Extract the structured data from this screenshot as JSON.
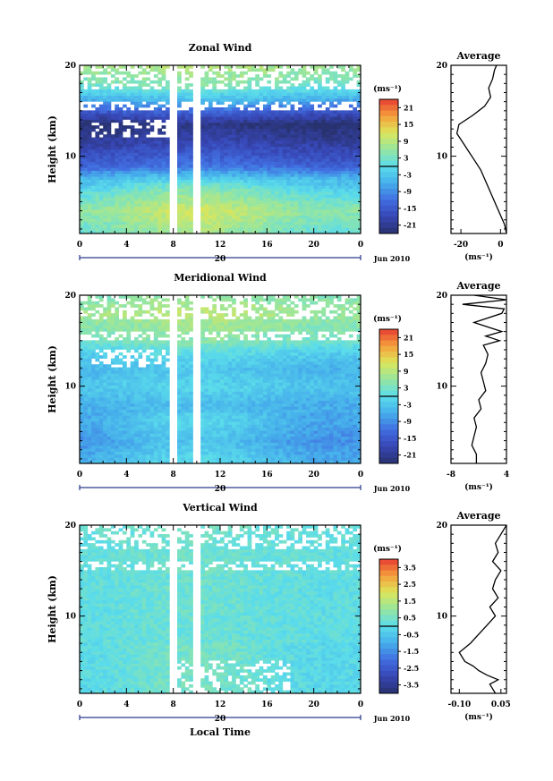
{
  "chart_data": [
    {
      "type": "heatmap",
      "title": "Zonal Wind",
      "ylabel": "Height (km)",
      "xlabel": "",
      "xlim": [
        0,
        24
      ],
      "ylim": [
        1.5,
        20
      ],
      "x_ticks": [
        "0",
        "4",
        "8",
        "12",
        "16",
        "20",
        "0"
      ],
      "y_ticks": [
        "10",
        "20"
      ],
      "date_label": "20",
      "date_suffix": "Jun 2010",
      "colorbar": {
        "unit": "(ms⁻¹)",
        "labels": [
          "21",
          "15",
          "9",
          "3",
          "-3",
          "-9",
          "-15",
          "-21"
        ],
        "range": [
          -24,
          24
        ]
      },
      "field": {
        "profile": [
          [
            1.5,
            4
          ],
          [
            4,
            8
          ],
          [
            6,
            3
          ],
          [
            7.5,
            -3
          ],
          [
            9,
            -13
          ],
          [
            12,
            -20
          ],
          [
            13.5,
            -23
          ],
          [
            15,
            -14
          ],
          [
            16,
            -6
          ],
          [
            18,
            4
          ],
          [
            20,
            8
          ]
        ],
        "diurnal_amplitude": 3,
        "gaps_hours": [
          8,
          10
        ]
      },
      "average": {
        "title": "Average",
        "unit": "(ms⁻¹)",
        "x_ticks": [
          "-20",
          "0"
        ],
        "xlim": [
          -25,
          3
        ],
        "height": [
          1.5,
          2.5,
          3.5,
          4.5,
          5.5,
          6.5,
          7.5,
          8.5,
          9.5,
          10.5,
          11.5,
          12.5,
          13.5,
          14.5,
          15.5,
          16.5,
          17.5,
          18.5,
          19.5,
          20
        ],
        "value": [
          3,
          2,
          0,
          -2,
          -4,
          -6,
          -8,
          -10,
          -13,
          -16,
          -19,
          -22,
          -21,
          -14,
          -8,
          -5,
          -6,
          -4,
          -3,
          -2
        ]
      }
    },
    {
      "type": "heatmap",
      "title": "Meridional Wind",
      "ylabel": "Height (km)",
      "xlabel": "",
      "xlim": [
        0,
        24
      ],
      "ylim": [
        1.5,
        20
      ],
      "x_ticks": [
        "0",
        "4",
        "8",
        "12",
        "16",
        "20",
        "0"
      ],
      "y_ticks": [
        "10",
        "20"
      ],
      "date_label": "20",
      "date_suffix": "Jun 2010",
      "colorbar": {
        "unit": "(ms⁻¹)",
        "labels": [
          "21",
          "15",
          "9",
          "3",
          "-3",
          "-9",
          "-15",
          "-21"
        ],
        "range": [
          -24,
          24
        ]
      },
      "field": {
        "profile": [
          [
            1.5,
            -3
          ],
          [
            4,
            -6
          ],
          [
            6,
            -4
          ],
          [
            8,
            -5
          ],
          [
            10,
            -2
          ],
          [
            12,
            -4
          ],
          [
            14,
            0
          ],
          [
            15,
            4
          ],
          [
            16,
            5
          ],
          [
            17,
            6
          ],
          [
            18,
            8
          ],
          [
            20,
            5
          ]
        ],
        "diurnal_amplitude": 3,
        "gaps_hours": [
          8,
          10
        ]
      },
      "average": {
        "title": "Average",
        "unit": "(ms⁻¹)",
        "x_ticks": [
          "-8",
          "4"
        ],
        "xlim": [
          -8,
          4
        ],
        "height": [
          1.5,
          2.5,
          3.5,
          4.5,
          5.5,
          6.5,
          7.5,
          8.5,
          9.5,
          10.5,
          11.5,
          12.5,
          13.5,
          14.5,
          15,
          15.5,
          16,
          17,
          18,
          18.5,
          19,
          19.5,
          20
        ],
        "value": [
          -2.5,
          -2.5,
          -3.5,
          -3,
          -2.5,
          -3,
          -1.5,
          -2,
          -0.5,
          -1,
          -1.5,
          -0.5,
          0,
          -1,
          2.5,
          -0.5,
          3,
          -3,
          3,
          3.5,
          -5.5,
          4,
          -3
        ]
      }
    },
    {
      "type": "heatmap",
      "title": "Vertical Wind",
      "ylabel": "Height (km)",
      "xlabel": "Local Time",
      "xlim": [
        0,
        24
      ],
      "ylim": [
        1.5,
        20
      ],
      "x_ticks": [
        "0",
        "4",
        "8",
        "12",
        "16",
        "20",
        "0"
      ],
      "y_ticks": [
        "10",
        "20"
      ],
      "date_label": "20",
      "date_suffix": "Jun 2010",
      "colorbar": {
        "unit": "(ms⁻¹)",
        "labels": [
          "3.5",
          "2.5",
          "1.5",
          "0.5",
          "-0.5",
          "-1.5",
          "-2.5",
          "-3.5"
        ],
        "range": [
          -4,
          4
        ]
      },
      "field": {
        "profile": [
          [
            1.5,
            0.2
          ],
          [
            10,
            0.2
          ],
          [
            20,
            0.3
          ]
        ],
        "diurnal_amplitude": 0.3,
        "gaps_hours": [
          8,
          10
        ]
      },
      "average": {
        "title": "Average",
        "unit": "(ms⁻¹)",
        "x_ticks": [
          "-0.10",
          "0.05"
        ],
        "xlim": [
          -0.13,
          0.07
        ],
        "height": [
          1.5,
          2.5,
          3,
          3.5,
          4,
          4.5,
          5,
          5.5,
          6,
          7,
          8,
          9,
          10,
          11,
          12,
          13,
          14,
          15,
          16,
          17,
          18,
          19,
          20
        ],
        "value": [
          0.03,
          0.01,
          0.04,
          0.0,
          -0.03,
          -0.05,
          -0.08,
          -0.09,
          -0.1,
          -0.06,
          -0.03,
          0.0,
          0.03,
          0.01,
          0.04,
          0.02,
          0.03,
          0.05,
          0.02,
          0.04,
          0.03,
          0.05,
          0.07
        ]
      }
    }
  ]
}
